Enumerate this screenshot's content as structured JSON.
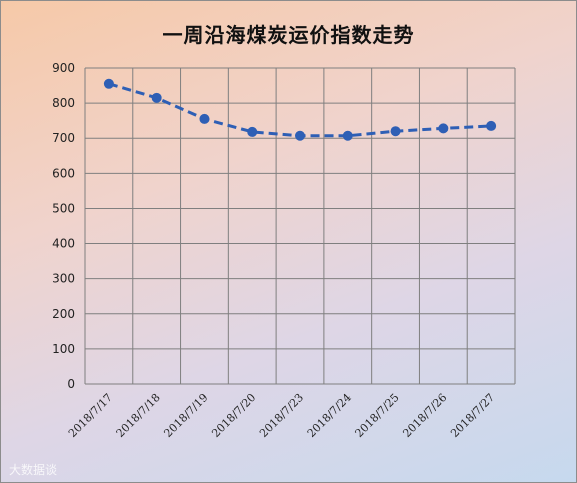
{
  "chart_data": {
    "type": "line",
    "title": "一周沿海煤炭运价指数走势",
    "xlabel": "",
    "ylabel": "",
    "categories": [
      "2018/7/17",
      "2018/7/18",
      "2018/7/19",
      "2018/7/20",
      "2018/7/23",
      "2018/7/24",
      "2018/7/25",
      "2018/7/26",
      "2018/7/27"
    ],
    "series": [
      {
        "values": [
          855,
          815,
          755,
          718,
          707,
          707,
          720,
          728,
          735
        ]
      }
    ],
    "ylim": [
      0,
      900
    ],
    "yticks": [
      0,
      100,
      200,
      300,
      400,
      500,
      600,
      700,
      800,
      900
    ],
    "grid": true,
    "legend": "none",
    "colors": {
      "series": "#2e5fb5",
      "grid": "#7f7f7f"
    }
  },
  "watermark": "大数据谈"
}
